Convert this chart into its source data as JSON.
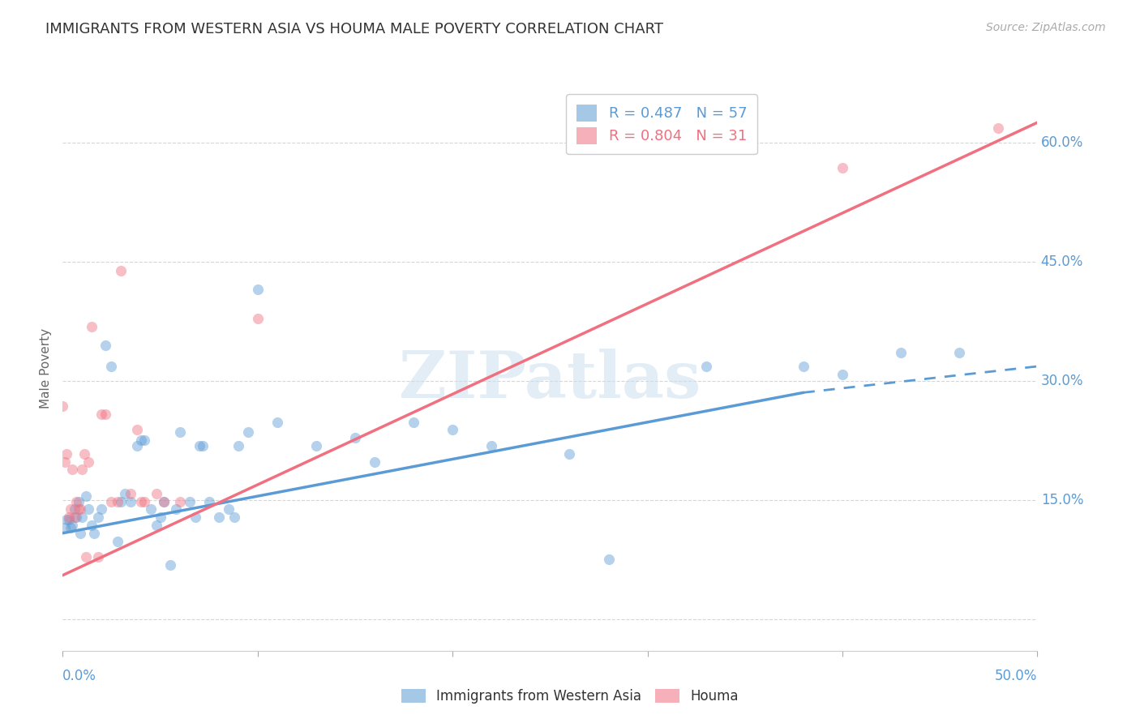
{
  "title": "IMMIGRANTS FROM WESTERN ASIA VS HOUMA MALE POVERTY CORRELATION CHART",
  "source": "Source: ZipAtlas.com",
  "ylabel": "Male Poverty",
  "yticks": [
    0.0,
    0.15,
    0.3,
    0.45,
    0.6
  ],
  "ytick_labels": [
    "",
    "15.0%",
    "30.0%",
    "45.0%",
    "60.0%"
  ],
  "xlim": [
    0.0,
    0.5
  ],
  "ylim": [
    -0.04,
    0.67
  ],
  "watermark": "ZIPatlas",
  "legend_entries": [
    {
      "label": "R = 0.487   N = 57",
      "color": "#5b9bd5"
    },
    {
      "label": "R = 0.804   N = 31",
      "color": "#f07080"
    }
  ],
  "blue_scatter": [
    [
      0.001,
      0.115
    ],
    [
      0.002,
      0.125
    ],
    [
      0.003,
      0.125
    ],
    [
      0.004,
      0.115
    ],
    [
      0.005,
      0.118
    ],
    [
      0.006,
      0.138
    ],
    [
      0.007,
      0.128
    ],
    [
      0.008,
      0.148
    ],
    [
      0.009,
      0.108
    ],
    [
      0.01,
      0.128
    ],
    [
      0.012,
      0.155
    ],
    [
      0.013,
      0.138
    ],
    [
      0.015,
      0.118
    ],
    [
      0.016,
      0.108
    ],
    [
      0.018,
      0.128
    ],
    [
      0.02,
      0.138
    ],
    [
      0.022,
      0.345
    ],
    [
      0.025,
      0.318
    ],
    [
      0.028,
      0.098
    ],
    [
      0.03,
      0.148
    ],
    [
      0.032,
      0.158
    ],
    [
      0.035,
      0.148
    ],
    [
      0.038,
      0.218
    ],
    [
      0.04,
      0.225
    ],
    [
      0.042,
      0.225
    ],
    [
      0.045,
      0.138
    ],
    [
      0.048,
      0.118
    ],
    [
      0.05,
      0.128
    ],
    [
      0.052,
      0.148
    ],
    [
      0.055,
      0.068
    ],
    [
      0.058,
      0.138
    ],
    [
      0.06,
      0.235
    ],
    [
      0.065,
      0.148
    ],
    [
      0.068,
      0.128
    ],
    [
      0.07,
      0.218
    ],
    [
      0.072,
      0.218
    ],
    [
      0.075,
      0.148
    ],
    [
      0.08,
      0.128
    ],
    [
      0.085,
      0.138
    ],
    [
      0.088,
      0.128
    ],
    [
      0.09,
      0.218
    ],
    [
      0.095,
      0.235
    ],
    [
      0.1,
      0.415
    ],
    [
      0.11,
      0.248
    ],
    [
      0.13,
      0.218
    ],
    [
      0.15,
      0.228
    ],
    [
      0.16,
      0.198
    ],
    [
      0.18,
      0.248
    ],
    [
      0.2,
      0.238
    ],
    [
      0.22,
      0.218
    ],
    [
      0.26,
      0.208
    ],
    [
      0.28,
      0.075
    ],
    [
      0.33,
      0.318
    ],
    [
      0.38,
      0.318
    ],
    [
      0.4,
      0.308
    ],
    [
      0.43,
      0.335
    ],
    [
      0.46,
      0.335
    ]
  ],
  "pink_scatter": [
    [
      0.0,
      0.268
    ],
    [
      0.001,
      0.198
    ],
    [
      0.002,
      0.208
    ],
    [
      0.003,
      0.128
    ],
    [
      0.004,
      0.138
    ],
    [
      0.005,
      0.188
    ],
    [
      0.006,
      0.128
    ],
    [
      0.007,
      0.148
    ],
    [
      0.008,
      0.138
    ],
    [
      0.009,
      0.138
    ],
    [
      0.01,
      0.188
    ],
    [
      0.011,
      0.208
    ],
    [
      0.012,
      0.078
    ],
    [
      0.013,
      0.198
    ],
    [
      0.015,
      0.368
    ],
    [
      0.018,
      0.078
    ],
    [
      0.02,
      0.258
    ],
    [
      0.022,
      0.258
    ],
    [
      0.025,
      0.148
    ],
    [
      0.028,
      0.148
    ],
    [
      0.03,
      0.438
    ],
    [
      0.035,
      0.158
    ],
    [
      0.038,
      0.238
    ],
    [
      0.04,
      0.148
    ],
    [
      0.042,
      0.148
    ],
    [
      0.048,
      0.158
    ],
    [
      0.052,
      0.148
    ],
    [
      0.06,
      0.148
    ],
    [
      0.1,
      0.378
    ],
    [
      0.4,
      0.568
    ],
    [
      0.48,
      0.618
    ]
  ],
  "blue_line_solid": {
    "x0": 0.0,
    "y0": 0.108,
    "x1": 0.38,
    "y1": 0.285
  },
  "blue_line_dash": {
    "x0": 0.38,
    "y0": 0.285,
    "x1": 0.5,
    "y1": 0.318
  },
  "pink_line": {
    "x0": 0.0,
    "y0": 0.055,
    "x1": 0.5,
    "y1": 0.625
  },
  "blue_color": "#5b9bd5",
  "pink_color": "#f07080",
  "scatter_alpha": 0.45,
  "scatter_size": 90,
  "grid_color": "#cccccc",
  "background_color": "#ffffff",
  "title_fontsize": 13,
  "axis_label_fontsize": 11,
  "tick_fontsize": 12,
  "source_fontsize": 10,
  "legend_color": "#5b9bd5"
}
